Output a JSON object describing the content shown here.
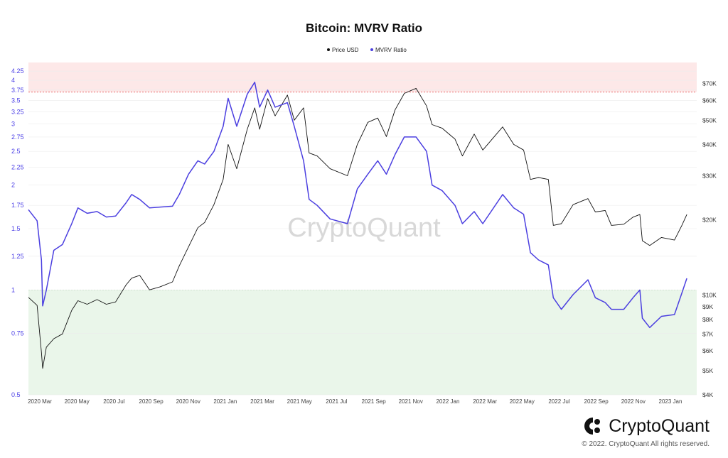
{
  "colors": {
    "price_line": "#111111",
    "mvrv_line": "#4b3fe0",
    "top_band": "#fde8e8",
    "top_line": "#e55a5a",
    "bottom_band": "#eaf6ea",
    "bottom_line": "#5fb35f",
    "grid": "#ececec"
  },
  "brand": {
    "name": "CryptoQuant",
    "copyright": "© 2022. CryptoQuant All rights reserved.",
    "watermark": "CryptoQuant",
    "logo_icon": "cryptoquant-logo-icon"
  },
  "chart_data": {
    "type": "line",
    "title": "Bitcoin: MVRV Ratio",
    "legend": [
      "Price USD",
      "MVRV Ratio"
    ],
    "legend_placement": "top-center",
    "grid": true,
    "x_ticks": [
      "2020 Mar",
      "2020 May",
      "2020 Jul",
      "2020 Sep",
      "2020 Nov",
      "2021 Jan",
      "2021 Mar",
      "2021 May",
      "2021 Jul",
      "2021 Sep",
      "2021 Nov",
      "2022 Jan",
      "2022 Mar",
      "2022 May",
      "2022 Jul",
      "2022 Sep",
      "2022 Nov",
      "2023 Jan"
    ],
    "left_axis": {
      "scale": "log",
      "range": [
        0.5,
        4.5
      ],
      "ticks": [
        0.5,
        0.75,
        1,
        1.25,
        1.5,
        1.75,
        2,
        2.25,
        2.5,
        2.75,
        3,
        3.25,
        3.5,
        3.75,
        4,
        4.25
      ],
      "tick_labels": [
        "0.5",
        "0.75",
        "1",
        "1.25",
        "1.5",
        "1.75",
        "2",
        "2.25",
        "2.5",
        "2.75",
        "3",
        "3.25",
        "3.5",
        "3.75",
        "4",
        "4.25"
      ]
    },
    "right_axis": {
      "scale": "log",
      "range": [
        4000,
        85000
      ],
      "ticks": [
        4000,
        5000,
        6000,
        7000,
        8000,
        9000,
        10000,
        20000,
        30000,
        40000,
        50000,
        60000,
        70000
      ],
      "tick_labels": [
        "$4K",
        "$5K",
        "$6K",
        "$7K",
        "$8K",
        "$9K",
        "$10K",
        "$20K",
        "$30K",
        "$40K",
        "$50K",
        "$60K",
        "$70K"
      ]
    },
    "bands": {
      "top_threshold": 3.7,
      "bottom_threshold": 1.0
    },
    "series": [
      {
        "name": "MVRV Ratio",
        "axis": "left",
        "x": [
          "2020-02-20",
          "2020-03-05",
          "2020-03-12",
          "2020-03-14",
          "2020-03-20",
          "2020-04-01",
          "2020-04-15",
          "2020-04-30",
          "2020-05-10",
          "2020-05-25",
          "2020-06-10",
          "2020-06-25",
          "2020-07-10",
          "2020-07-27",
          "2020-08-05",
          "2020-08-18",
          "2020-09-03",
          "2020-09-20",
          "2020-10-10",
          "2020-10-21",
          "2020-11-05",
          "2020-11-20",
          "2020-12-01",
          "2020-12-16",
          "2020-12-31",
          "2021-01-08",
          "2021-01-22",
          "2021-02-08",
          "2021-02-20",
          "2021-02-28",
          "2021-03-13",
          "2021-03-25",
          "2021-04-14",
          "2021-04-25",
          "2021-05-10",
          "2021-05-19",
          "2021-06-01",
          "2021-06-22",
          "2021-07-20",
          "2021-08-05",
          "2021-08-22",
          "2021-09-07",
          "2021-09-21",
          "2021-10-05",
          "2021-10-20",
          "2021-11-08",
          "2021-11-25",
          "2021-12-04",
          "2021-12-20",
          "2022-01-10",
          "2022-01-22",
          "2022-02-10",
          "2022-02-24",
          "2022-03-28",
          "2022-04-15",
          "2022-05-01",
          "2022-05-12",
          "2022-05-25",
          "2022-06-10",
          "2022-06-18",
          "2022-07-01",
          "2022-07-20",
          "2022-08-13",
          "2022-08-25",
          "2022-09-10",
          "2022-09-20",
          "2022-10-10",
          "2022-10-25",
          "2022-11-05",
          "2022-11-09",
          "2022-11-21",
          "2022-12-10",
          "2022-12-31",
          "2023-01-12",
          "2023-01-20"
        ],
        "values": [
          1.7,
          1.58,
          1.22,
          0.9,
          1.0,
          1.3,
          1.35,
          1.55,
          1.72,
          1.66,
          1.68,
          1.62,
          1.63,
          1.78,
          1.88,
          1.82,
          1.72,
          1.73,
          1.74,
          1.88,
          2.15,
          2.35,
          2.3,
          2.5,
          2.95,
          3.55,
          2.95,
          3.65,
          3.95,
          3.35,
          3.75,
          3.35,
          3.45,
          2.95,
          2.35,
          1.82,
          1.75,
          1.6,
          1.55,
          1.95,
          2.15,
          2.35,
          2.15,
          2.45,
          2.75,
          2.75,
          2.5,
          2.0,
          1.93,
          1.75,
          1.55,
          1.68,
          1.55,
          1.88,
          1.72,
          1.65,
          1.28,
          1.22,
          1.18,
          0.95,
          0.88,
          0.97,
          1.07,
          0.95,
          0.92,
          0.88,
          0.88,
          0.95,
          1.0,
          0.83,
          0.78,
          0.84,
          0.85,
          0.98,
          1.08
        ]
      },
      {
        "name": "Price USD",
        "axis": "right",
        "x": [
          "2020-02-20",
          "2020-03-05",
          "2020-03-12",
          "2020-03-14",
          "2020-03-20",
          "2020-04-01",
          "2020-04-15",
          "2020-04-30",
          "2020-05-10",
          "2020-05-25",
          "2020-06-10",
          "2020-06-25",
          "2020-07-10",
          "2020-07-27",
          "2020-08-05",
          "2020-08-18",
          "2020-09-03",
          "2020-09-20",
          "2020-10-10",
          "2020-10-21",
          "2020-11-05",
          "2020-11-20",
          "2020-12-01",
          "2020-12-16",
          "2020-12-31",
          "2021-01-08",
          "2021-01-22",
          "2021-02-08",
          "2021-02-20",
          "2021-02-28",
          "2021-03-13",
          "2021-03-25",
          "2021-04-14",
          "2021-04-25",
          "2021-05-10",
          "2021-05-19",
          "2021-06-01",
          "2021-06-22",
          "2021-07-20",
          "2021-08-05",
          "2021-08-22",
          "2021-09-07",
          "2021-09-21",
          "2021-10-05",
          "2021-10-20",
          "2021-11-08",
          "2021-11-25",
          "2021-12-04",
          "2021-12-20",
          "2022-01-10",
          "2022-01-22",
          "2022-02-10",
          "2022-02-24",
          "2022-03-28",
          "2022-04-15",
          "2022-05-01",
          "2022-05-12",
          "2022-05-25",
          "2022-06-10",
          "2022-06-18",
          "2022-07-01",
          "2022-07-20",
          "2022-08-13",
          "2022-08-25",
          "2022-09-10",
          "2022-09-20",
          "2022-10-10",
          "2022-10-25",
          "2022-11-05",
          "2022-11-09",
          "2022-11-21",
          "2022-12-10",
          "2022-12-31",
          "2023-01-12",
          "2023-01-20"
        ],
        "values": [
          9800,
          9100,
          5900,
          5100,
          6200,
          6700,
          7000,
          8700,
          9500,
          9200,
          9600,
          9200,
          9400,
          11000,
          11700,
          12000,
          10500,
          10800,
          11300,
          13100,
          15600,
          18600,
          19500,
          23000,
          29000,
          40000,
          32000,
          46000,
          56000,
          46000,
          61000,
          52000,
          63000,
          50000,
          56000,
          37000,
          36000,
          32000,
          30000,
          40000,
          49000,
          51000,
          43000,
          55000,
          64000,
          67000,
          57000,
          48000,
          46500,
          42000,
          36000,
          44000,
          38000,
          47000,
          40000,
          38000,
          29000,
          29500,
          29000,
          19000,
          19300,
          23000,
          24300,
          21500,
          21800,
          19000,
          19200,
          20500,
          21000,
          16500,
          15800,
          17000,
          16600,
          19000,
          21000
        ]
      }
    ]
  }
}
